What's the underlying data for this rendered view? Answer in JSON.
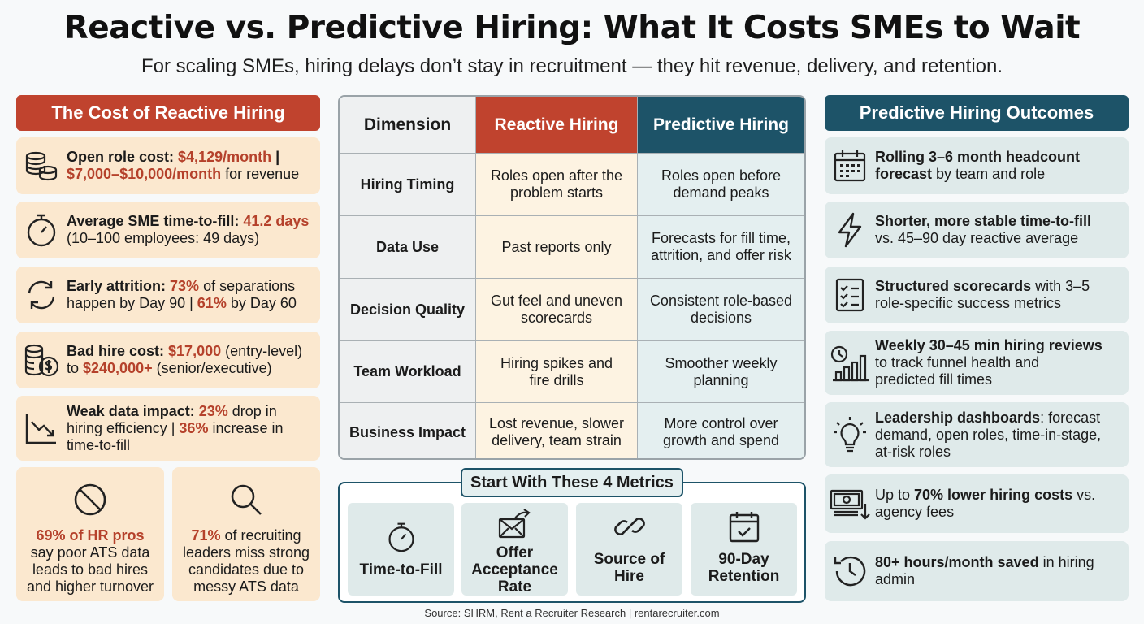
{
  "title": "Reactive vs. Predictive Hiring: What It Costs SMEs to Wait",
  "subtitle": "For scaling SMEs, hiring delays don’t stay in recruitment — they hit revenue, delivery, and retention.",
  "left": {
    "header": "The Cost of Reactive Hiring",
    "cards": [
      {
        "icon": "coins-icon",
        "a": "Open role cost: ",
        "b": "$4,129/month",
        "c": " |",
        "d": "$7,000–$10,000/month",
        "e": " for revenue"
      },
      {
        "icon": "stopwatch-icon",
        "a": "Average SME time-to-fill: ",
        "b": "41.2 days",
        "c": "(10–100 employees: 49 days)"
      },
      {
        "icon": "refresh-icon",
        "a": "Early attrition: ",
        "b": "73%",
        "c": " of separations",
        "d": "happen by Day 90 | ",
        "e": "61%",
        "f": " by Day 60"
      },
      {
        "icon": "money-coins-icon",
        "a": "Bad hire cost: ",
        "b": "$17,000",
        "c": " (entry-level)",
        "d": "to ",
        "e": "$240,000+",
        "f": " (senior/executive)"
      },
      {
        "icon": "chart-down-icon",
        "a": "Weak data impact: ",
        "b": "23%",
        "c": " drop in",
        "d": "hiring efficiency | ",
        "e": "36%",
        "f": " increase in",
        "g": "time-to-fill"
      }
    ],
    "mini": [
      {
        "icon": "prohibited-icon",
        "a": "69% of HR pros",
        "b": "say poor ATS data",
        "c": "leads to bad hires",
        "d": "and higher turnover"
      },
      {
        "icon": "magnifier-icon",
        "a": "71%",
        "b": " of recruiting",
        "c": "leaders miss strong",
        "d": "candidates due to",
        "e": "messy ATS data"
      }
    ]
  },
  "table": {
    "headers": [
      "Dimension",
      "Reactive Hiring",
      "Predictive Hiring"
    ],
    "rows": [
      {
        "dim": "Hiring Timing",
        "r1": "Roles open after the",
        "r2": "problem starts",
        "p1": "Roles open before",
        "p2": "demand peaks"
      },
      {
        "dim": "Data Use",
        "r1": "Past reports only",
        "r2": "",
        "p1": "Forecasts for fill time,",
        "p2": "attrition, and offer risk"
      },
      {
        "dim": "Decision Quality",
        "r1": "Gut feel and uneven",
        "r2": "scorecards",
        "p1": "Consistent role-based",
        "p2": "decisions"
      },
      {
        "dim": "Team Workload",
        "r1": "Hiring spikes and",
        "r2": "fire drills",
        "p1": "Smoother weekly",
        "p2": "planning"
      },
      {
        "dim": "Business Impact",
        "r1": "Lost revenue, slower",
        "r2": "delivery, team strain",
        "p1": "More control over",
        "p2": "growth and spend"
      }
    ]
  },
  "metrics": {
    "title": "Start With These 4 Metrics",
    "items": [
      {
        "icon": "stopwatch-icon",
        "l1": "Time-to-Fill",
        "l2": "",
        "l3": ""
      },
      {
        "icon": "envelope-icon",
        "l1": "Offer",
        "l2": "Acceptance",
        "l3": "Rate"
      },
      {
        "icon": "link-icon",
        "l1": "Source of",
        "l2": "Hire",
        "l3": ""
      },
      {
        "icon": "calendar-check-icon",
        "l1": "90-Day",
        "l2": "Retention",
        "l3": ""
      }
    ]
  },
  "right": {
    "header": "Predictive Hiring Outcomes",
    "cards": [
      {
        "icon": "calendar-icon",
        "a": "Rolling 3–6 month headcount",
        "b": "forecast",
        "c": " by team and role"
      },
      {
        "icon": "lightning-icon",
        "a": "Shorter, more stable time-to-fill",
        "b": "vs. 45–90 day reactive average"
      },
      {
        "icon": "checklist-icon",
        "a": "Structured scorecards",
        "b": " with 3–5",
        "c": "role-specific success metrics"
      },
      {
        "icon": "clock-chart-icon",
        "a": "Weekly 30–45 min hiring reviews",
        "b": "to track funnel health and",
        "c": "predicted fill times"
      },
      {
        "icon": "lightbulb-icon",
        "a": "Leadership dashboards",
        "b": ": forecast",
        "c": "demand, open roles, time-in-stage,",
        "d": "at-risk roles"
      },
      {
        "icon": "cash-down-icon",
        "a": "Up to ",
        "b": "70% lower hiring costs",
        "c": " vs.",
        "d": "agency fees"
      },
      {
        "icon": "history-icon",
        "a": "80+ hours/month saved",
        "b": " in hiring",
        "c": "admin"
      }
    ]
  },
  "source": "Source: SHRM, Rent a Recruiter Research | rentarecruiter.com",
  "colors": {
    "red": "#c0432e",
    "teal": "#1d5368",
    "peach": "#fbe8cf",
    "mint": "#dfeaea"
  }
}
